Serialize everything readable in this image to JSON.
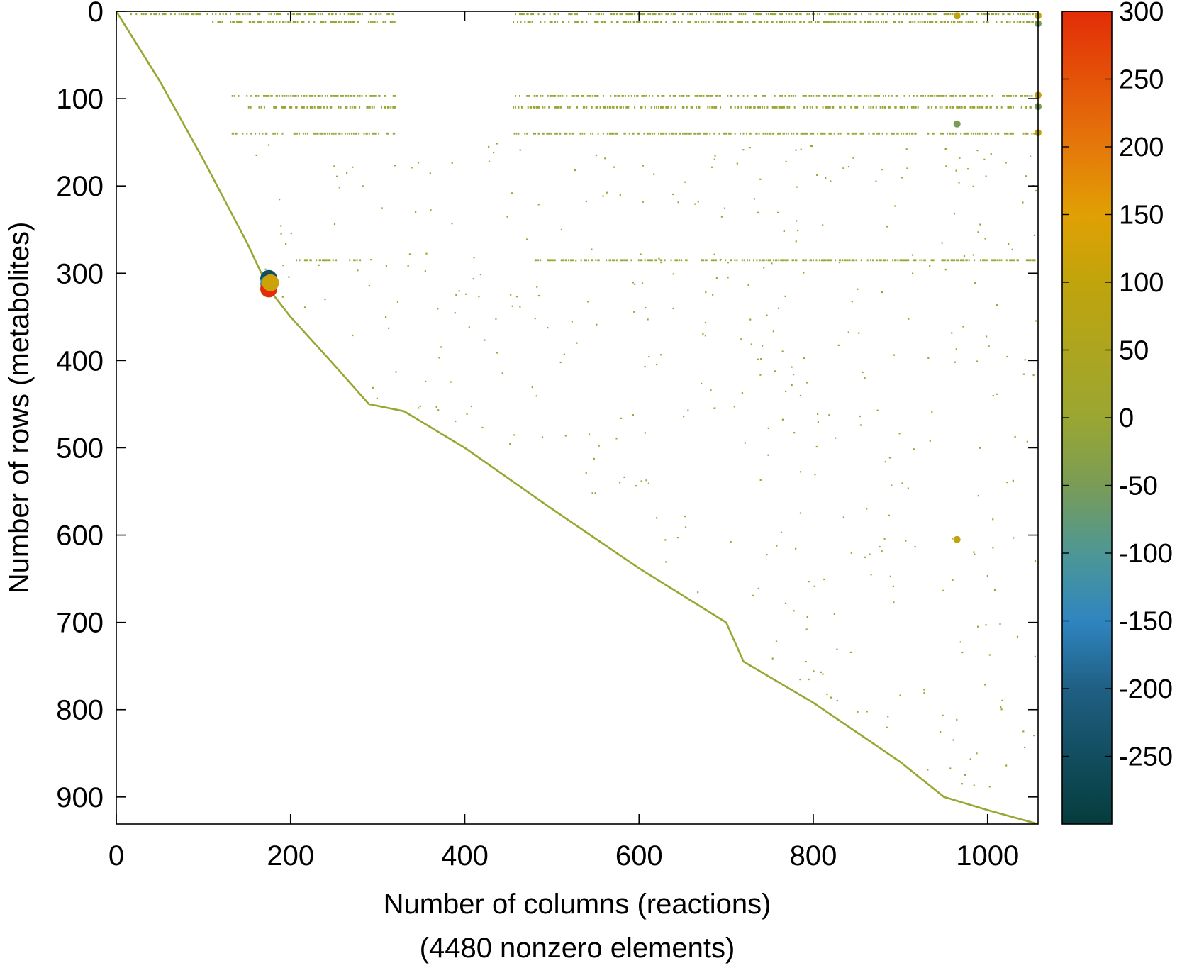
{
  "chart_data": {
    "type": "scatter",
    "subtype": "sparsity-pattern",
    "title": "",
    "xlabel": "Number of columns (reactions)",
    "xlabel_line2": "(4480 nonzero elements)",
    "ylabel": "Number of rows (metabolites)",
    "xlim": [
      0,
      1058
    ],
    "ylim": [
      0,
      931
    ],
    "y_inverted": true,
    "grid": false,
    "x_ticks": [
      0,
      200,
      400,
      600,
      800,
      1000
    ],
    "y_ticks": [
      0,
      100,
      200,
      300,
      400,
      500,
      600,
      700,
      800,
      900
    ],
    "colorbar": {
      "range": [
        -300,
        300
      ],
      "ticks": [
        300,
        250,
        200,
        150,
        100,
        50,
        0,
        -50,
        -100,
        -150,
        -200,
        -250
      ],
      "colorscale": [
        {
          "value": -300,
          "color": "#053c3c"
        },
        {
          "value": -200,
          "color": "#1f5f83"
        },
        {
          "value": -150,
          "color": "#2f85c0"
        },
        {
          "value": -100,
          "color": "#4d9795"
        },
        {
          "value": -50,
          "color": "#7a9c56"
        },
        {
          "value": 0,
          "color": "#9aa632"
        },
        {
          "value": 100,
          "color": "#c0a40c"
        },
        {
          "value": 150,
          "color": "#e0a004"
        },
        {
          "value": 200,
          "color": "#e5780a"
        },
        {
          "value": 300,
          "color": "#e32d07"
        }
      ]
    },
    "diagonal_path": [
      [
        0,
        0
      ],
      [
        50,
        80
      ],
      [
        100,
        170
      ],
      [
        150,
        265
      ],
      [
        175,
        318
      ],
      [
        200,
        350
      ],
      [
        250,
        405
      ],
      [
        290,
        450
      ],
      [
        330,
        458
      ],
      [
        400,
        500
      ],
      [
        500,
        570
      ],
      [
        600,
        638
      ],
      [
        700,
        700
      ],
      [
        720,
        745
      ],
      [
        800,
        792
      ],
      [
        900,
        860
      ],
      [
        950,
        900
      ],
      [
        1000,
        915
      ],
      [
        1058,
        931
      ]
    ],
    "dense_rows": [
      {
        "row": 3,
        "x_ranges": [
          [
            15,
            320
          ],
          [
            455,
            1058
          ]
        ]
      },
      {
        "row": 12,
        "x_ranges": [
          [
            110,
            320
          ],
          [
            455,
            1058
          ]
        ]
      },
      {
        "row": 97,
        "x_ranges": [
          [
            130,
            320
          ],
          [
            455,
            1058
          ]
        ]
      },
      {
        "row": 110,
        "x_ranges": [
          [
            150,
            320
          ],
          [
            455,
            1058
          ]
        ]
      },
      {
        "row": 140,
        "x_ranges": [
          [
            130,
            320
          ],
          [
            455,
            1058
          ]
        ]
      },
      {
        "row": 285,
        "x_ranges": [
          [
            200,
            280
          ],
          [
            480,
            1058
          ]
        ]
      }
    ],
    "highlight_points": [
      {
        "x": 175,
        "y": 306,
        "value": -250
      },
      {
        "x": 175,
        "y": 312,
        "value": -100
      },
      {
        "x": 175,
        "y": 318,
        "value": 300
      },
      {
        "x": 177,
        "y": 311,
        "value": 120
      },
      {
        "x": 1058,
        "y": 5,
        "value": 100
      },
      {
        "x": 1058,
        "y": 14,
        "value": -50
      },
      {
        "x": 1058,
        "y": 96,
        "value": 100
      },
      {
        "x": 1058,
        "y": 109,
        "value": -50
      },
      {
        "x": 1058,
        "y": 139,
        "value": 100
      },
      {
        "x": 965,
        "y": 5,
        "value": 100
      },
      {
        "x": 965,
        "y": 129,
        "value": -50
      },
      {
        "x": 965,
        "y": 605,
        "value": 100
      }
    ]
  }
}
